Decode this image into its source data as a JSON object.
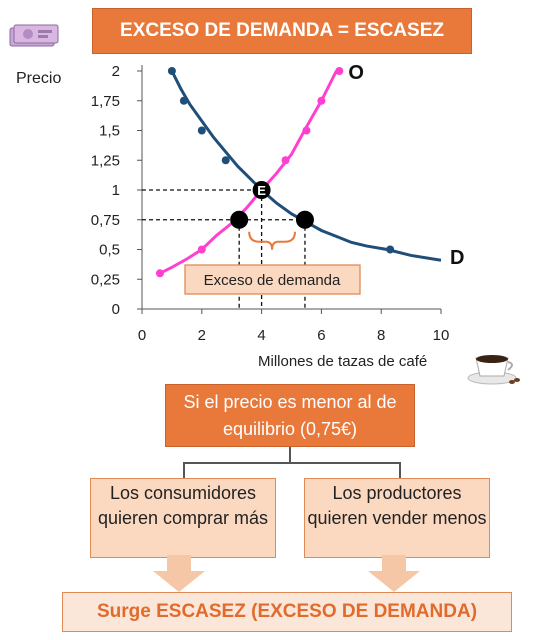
{
  "title": "EXCESO DE DEMANDA = ESCASEZ",
  "icons": {
    "money": "euro-banknotes-icon",
    "coffee": "coffee-cup-icon"
  },
  "colors": {
    "accent": "#e8793a",
    "demand": "#1f4e79",
    "supply": "#ff3fd0",
    "box_light": "#fbd9c1"
  },
  "chart_data": {
    "type": "line",
    "title": "",
    "xlabel": "Millones de tazas de café",
    "ylabel": "Precio",
    "xlim": [
      0,
      10
    ],
    "ylim": [
      0,
      2
    ],
    "x_ticks": [
      "0",
      "2",
      "4",
      "6",
      "8",
      "10"
    ],
    "y_ticks": [
      "0",
      "0,25",
      "0,5",
      "0,75",
      "1",
      "1,25",
      "1,5",
      "1,75",
      "2"
    ],
    "grid": false,
    "series": [
      {
        "name": "D",
        "x": [
          1.0,
          1.3,
          1.6,
          2.0,
          2.4,
          2.8,
          3.2,
          3.6,
          4.0,
          4.5,
          5.0,
          5.5,
          6.0,
          6.5,
          7.0,
          7.5,
          8.2,
          9.0,
          10.0
        ],
        "y": [
          2.0,
          1.85,
          1.72,
          1.58,
          1.44,
          1.32,
          1.2,
          1.1,
          1.0,
          0.89,
          0.8,
          0.73,
          0.66,
          0.61,
          0.56,
          0.53,
          0.5,
          0.45,
          0.41
        ],
        "markers": [
          [
            1.0,
            2.0
          ],
          [
            1.4,
            1.75
          ],
          [
            2.0,
            1.5
          ],
          [
            2.8,
            1.25
          ],
          [
            4.0,
            1.0
          ],
          [
            8.3,
            0.5
          ]
        ]
      },
      {
        "name": "O",
        "x": [
          0.6,
          1.0,
          1.5,
          2.0,
          2.5,
          3.0,
          3.5,
          4.0,
          4.5,
          5.0,
          5.5,
          6.0,
          6.5
        ],
        "y": [
          0.3,
          0.35,
          0.42,
          0.5,
          0.62,
          0.72,
          0.85,
          1.0,
          1.14,
          1.3,
          1.53,
          1.75,
          2.0
        ],
        "markers": [
          [
            0.6,
            0.3
          ],
          [
            2.0,
            0.5
          ],
          [
            4.0,
            1.0
          ],
          [
            4.8,
            1.25
          ],
          [
            5.5,
            1.5
          ],
          [
            6.0,
            1.75
          ],
          [
            6.6,
            2.0
          ]
        ]
      }
    ],
    "points": [
      {
        "label": "E",
        "x": 4.0,
        "y": 1.0
      },
      {
        "label": "",
        "x": 3.25,
        "y": 0.75
      },
      {
        "label": "",
        "x": 5.45,
        "y": 0.75
      }
    ],
    "annotations": {
      "excess": "Exceso de demanda"
    }
  },
  "condition_text": "Si el precio es menor al de equilibrio (0,75€)",
  "consumers_text": "Los consumidores quieren comprar más",
  "producers_text": "Los productores quieren vender menos",
  "conclusion_text": "Surge ESCASEZ (EXCESO DE DEMANDA)"
}
